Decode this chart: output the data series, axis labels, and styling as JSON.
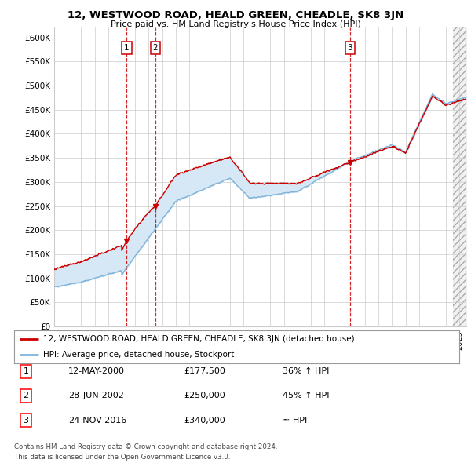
{
  "title": "12, WESTWOOD ROAD, HEALD GREEN, CHEADLE, SK8 3JN",
  "subtitle": "Price paid vs. HM Land Registry's House Price Index (HPI)",
  "ylim": [
    0,
    620000
  ],
  "yticks": [
    0,
    50000,
    100000,
    150000,
    200000,
    250000,
    300000,
    350000,
    400000,
    450000,
    500000,
    550000,
    600000
  ],
  "ytick_labels": [
    "£0",
    "£50K",
    "£100K",
    "£150K",
    "£200K",
    "£250K",
    "£300K",
    "£350K",
    "£400K",
    "£450K",
    "£500K",
    "£550K",
    "£600K"
  ],
  "red_line_color": "#cc0000",
  "blue_line_color": "#7fb3d9",
  "shading_color": "#d6e8f5",
  "transaction_years": [
    2000.37,
    2002.49,
    2016.9
  ],
  "transaction_prices": [
    177500,
    250000,
    340000
  ],
  "transaction_labels": [
    "1",
    "2",
    "3"
  ],
  "legend_label_red": "12, WESTWOOD ROAD, HEALD GREEN, CHEADLE, SK8 3JN (detached house)",
  "legend_label_blue": "HPI: Average price, detached house, Stockport",
  "table_data": [
    {
      "num": "1",
      "date": "12-MAY-2000",
      "price": "£177,500",
      "hpi": "36% ↑ HPI"
    },
    {
      "num": "2",
      "date": "28-JUN-2002",
      "price": "£250,000",
      "hpi": "45% ↑ HPI"
    },
    {
      "num": "3",
      "date": "24-NOV-2016",
      "price": "£340,000",
      "hpi": "≈ HPI"
    }
  ],
  "footnote1": "Contains HM Land Registry data © Crown copyright and database right 2024.",
  "footnote2": "This data is licensed under the Open Government Licence v3.0.",
  "background_color": "#ffffff",
  "grid_color": "#cccccc",
  "xlim_start": 1995.0,
  "xlim_end": 2025.5,
  "hatch_start": 2024.5
}
